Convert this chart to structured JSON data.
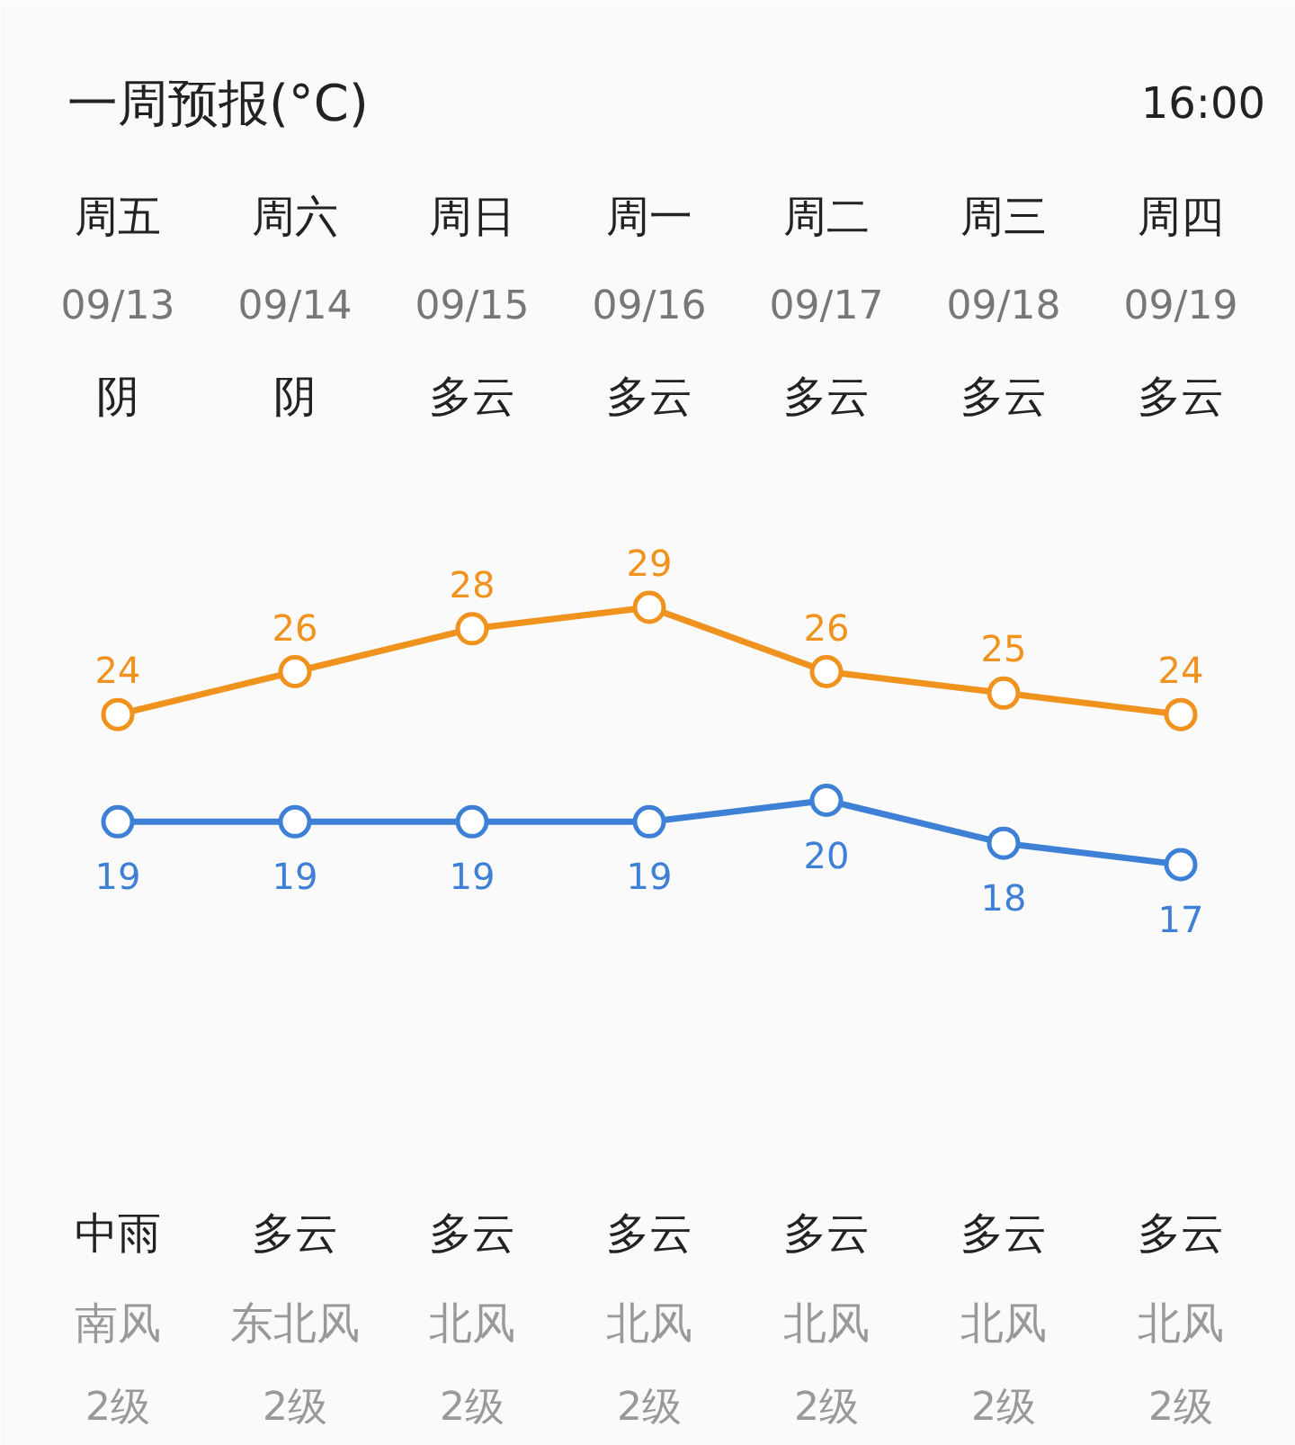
{
  "chart_data": {
    "type": "line",
    "title": "一周预报(°C)",
    "subtitle": "16:00",
    "categories": [
      "周五\n09/13\n阴",
      "周六\n09/14\n阴",
      "周日\n09/15\n多云",
      "周一\n09/16\n多云",
      "周二\n09/17\n多云",
      "周三\n09/18\n多云",
      "周四\n09/19\n多云"
    ],
    "series": [
      {
        "color": "#f0921e",
        "values": [
          24,
          26,
          28,
          29,
          26,
          25,
          24
        ]
      },
      {
        "color": "#3d80d5",
        "values": [
          19,
          19,
          19,
          19,
          20,
          18,
          17
        ]
      }
    ],
    "tick_labels": "x",
    "data_labels": true,
    "marker": "circle",
    "line_style": "solid",
    "annotations": [
      "中雨",
      "多云",
      "多云",
      "多云",
      "多云",
      "多云",
      "多云",
      "南风",
      "东北风",
      "北风",
      "北风",
      "北风",
      "北风",
      "北风",
      "2级",
      "2级",
      "2级",
      "2级",
      "2级",
      "2级",
      "2级"
    ]
  }
}
